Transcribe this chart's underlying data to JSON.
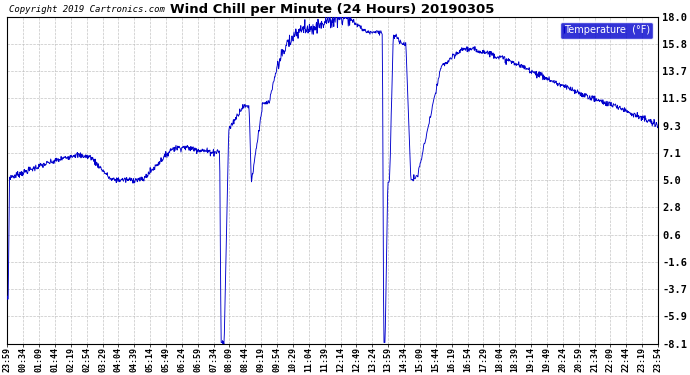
{
  "title": "Wind Chill per Minute (24 Hours) 20190305",
  "copyright": "Copyright 2019 Cartronics.com",
  "legend_label": "Temperature  (°F)",
  "line_color": "#0000cc",
  "background_color": "#ffffff",
  "plot_bg_color": "#ffffff",
  "yticks": [
    18.0,
    15.8,
    13.7,
    11.5,
    9.3,
    7.1,
    5.0,
    2.8,
    0.6,
    -1.6,
    -3.7,
    -5.9,
    -8.1
  ],
  "ymin": -8.1,
  "ymax": 18.0,
  "x_tick_labels": [
    "23:59",
    "00:34",
    "01:09",
    "01:44",
    "02:19",
    "02:54",
    "03:29",
    "04:04",
    "04:39",
    "05:14",
    "05:49",
    "06:24",
    "06:59",
    "07:34",
    "08:09",
    "08:44",
    "09:19",
    "09:54",
    "10:29",
    "11:04",
    "11:39",
    "12:14",
    "12:49",
    "13:24",
    "13:59",
    "14:34",
    "15:09",
    "15:44",
    "16:19",
    "16:54",
    "17:29",
    "18:04",
    "18:39",
    "19:14",
    "19:49",
    "20:24",
    "20:59",
    "21:34",
    "22:09",
    "22:44",
    "23:19",
    "23:54"
  ],
  "profile_t": [
    0,
    2,
    5,
    15,
    80,
    150,
    185,
    230,
    300,
    365,
    390,
    455,
    470,
    473,
    480,
    490,
    520,
    535,
    540,
    565,
    580,
    600,
    640,
    680,
    720,
    755,
    760,
    795,
    800,
    825,
    830,
    833,
    836,
    842,
    846,
    854,
    857,
    878,
    882,
    893,
    896,
    908,
    960,
    1010,
    1060,
    1110,
    1160,
    1210,
    1260,
    1310,
    1360,
    1400,
    1440
  ],
  "profile_v": [
    -4.5,
    -4.5,
    5.2,
    5.3,
    6.2,
    7.0,
    6.8,
    5.0,
    5.0,
    7.5,
    7.6,
    7.2,
    7.3,
    -8.0,
    -8.0,
    9.0,
    10.8,
    10.9,
    4.8,
    11.0,
    11.2,
    14.5,
    16.8,
    17.3,
    17.8,
    17.9,
    17.8,
    16.8,
    16.8,
    16.8,
    16.8,
    -8.0,
    -8.0,
    4.8,
    4.8,
    16.5,
    16.5,
    15.8,
    15.8,
    5.0,
    5.0,
    5.3,
    14.0,
    15.5,
    15.2,
    14.5,
    13.7,
    12.8,
    12.0,
    11.3,
    10.7,
    10.0,
    9.3
  ]
}
